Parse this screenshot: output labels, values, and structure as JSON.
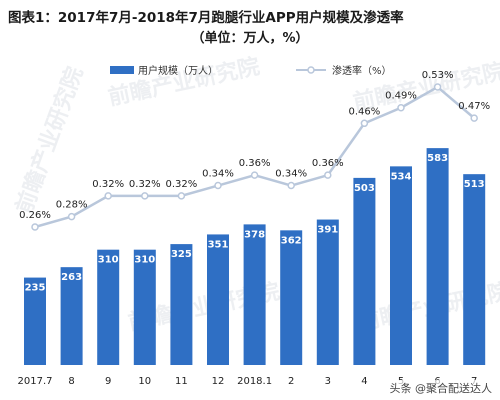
{
  "chart_data": {
    "type": "bar",
    "title": "图表1：2017年7月-2018年7月跑腿行业APP用户规模及渗透率",
    "subtitle": "（单位：万人，%）",
    "categories": [
      "2017.7",
      "8",
      "9",
      "10",
      "11",
      "12",
      "2018.1",
      "2",
      "3",
      "4",
      "5",
      "6",
      "7"
    ],
    "series": [
      {
        "name": "用户规模（万人）",
        "type": "bar",
        "color": "#2f6fc4",
        "values": [
          235,
          263,
          310,
          310,
          325,
          351,
          378,
          362,
          391,
          503,
          534,
          583,
          513
        ]
      },
      {
        "name": "渗透率（%）",
        "type": "line",
        "color": "#b9c7db",
        "values": [
          0.26,
          0.28,
          0.32,
          0.32,
          0.32,
          0.34,
          0.36,
          0.34,
          0.36,
          0.46,
          0.49,
          0.53,
          0.47
        ],
        "labels": [
          "0.26%",
          "0.28%",
          "0.32%",
          "0.32%",
          "0.32%",
          "0.34%",
          "0.36%",
          "0.34%",
          "0.36%",
          "0.46%",
          "0.49%",
          "0.53%",
          "0.47%"
        ]
      }
    ],
    "grid": false,
    "legend": "top-center"
  },
  "credit": "头条 @聚合配送达人",
  "watermark": "前瞻产业研究院"
}
